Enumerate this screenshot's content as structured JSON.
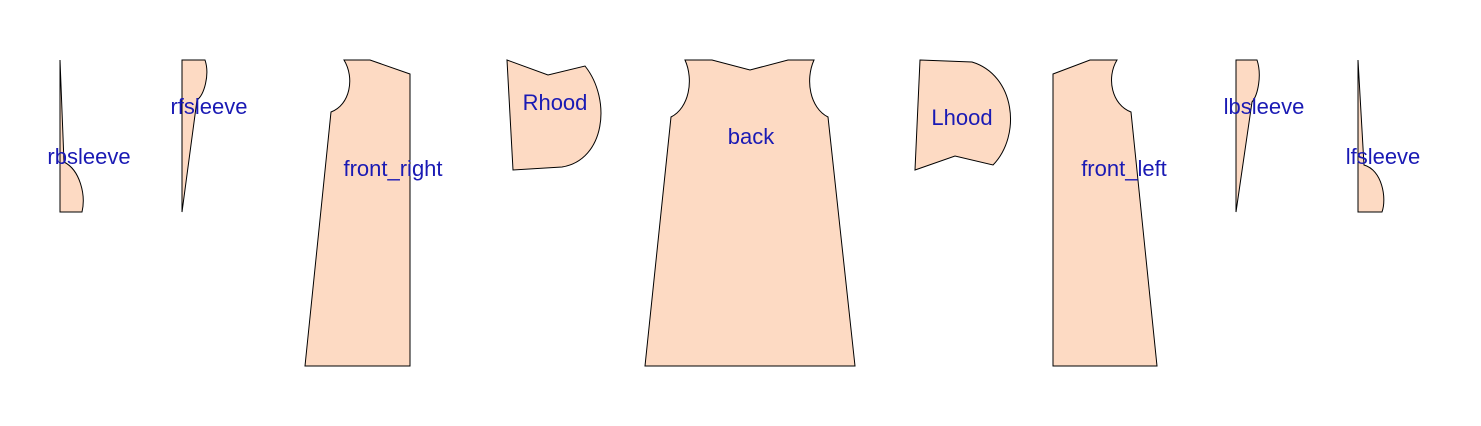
{
  "colors": {
    "background": "#ffffff",
    "piece_fill": "#fddac3",
    "piece_stroke": "#000000",
    "label": "#1a1ab4"
  },
  "pieces": {
    "rbsleeve": {
      "label": "rbsleeve"
    },
    "rfsleeve": {
      "label": "rfsleeve"
    },
    "front_right": {
      "label": "front_right"
    },
    "rhood": {
      "label": "Rhood"
    },
    "back": {
      "label": "back"
    },
    "lhood": {
      "label": "Lhood"
    },
    "front_left": {
      "label": "front_left"
    },
    "lbsleeve": {
      "label": "lbsleeve"
    },
    "lfsleeve": {
      "label": "lfsleeve"
    }
  }
}
